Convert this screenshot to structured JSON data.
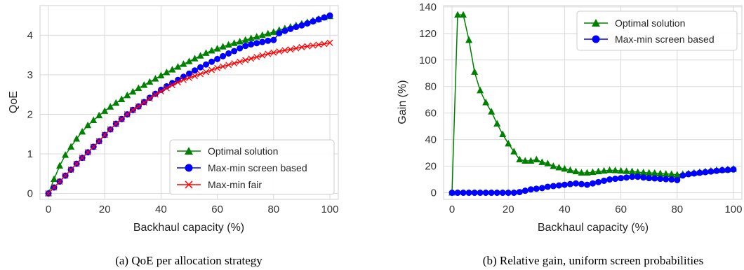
{
  "captions": {
    "a": "(a) QoE per allocation strategy",
    "b": "(b) Relative gain, uniform screen probabilities"
  },
  "chart_data": [
    {
      "type": "line",
      "title": "",
      "xlabel": "Backhaul capacity (%)",
      "ylabel": "QoE",
      "xlim": [
        -3,
        103
      ],
      "ylim": [
        -0.15,
        4.75
      ],
      "xticks": [
        0,
        20,
        40,
        60,
        80,
        100
      ],
      "yticks": [
        0,
        1,
        2,
        3,
        4
      ],
      "grid": true,
      "legend_position": "lower-right",
      "series": [
        {
          "name": "Optimal solution",
          "color": "#008000",
          "marker": "triangle",
          "x": [
            0,
            2,
            4,
            6,
            8,
            10,
            12,
            14,
            16,
            18,
            20,
            22,
            24,
            26,
            28,
            30,
            32,
            34,
            36,
            38,
            40,
            42,
            44,
            46,
            48,
            50,
            52,
            54,
            56,
            58,
            60,
            62,
            64,
            66,
            68,
            70,
            72,
            74,
            76,
            78,
            80,
            82,
            84,
            86,
            88,
            90,
            92,
            94,
            96,
            98,
            100
          ],
          "y": [
            0,
            0.36,
            0.7,
            0.97,
            1.18,
            1.38,
            1.56,
            1.72,
            1.85,
            1.97,
            2.08,
            2.19,
            2.29,
            2.38,
            2.48,
            2.57,
            2.66,
            2.74,
            2.82,
            2.9,
            2.98,
            3.06,
            3.13,
            3.2,
            3.27,
            3.34,
            3.41,
            3.48,
            3.55,
            3.61,
            3.66,
            3.71,
            3.76,
            3.8,
            3.84,
            3.88,
            3.92,
            3.96,
            4.0,
            4.04,
            4.08,
            4.13,
            4.17,
            4.21,
            4.25,
            4.29,
            4.33,
            4.37,
            4.41,
            4.45,
            4.48
          ]
        },
        {
          "name": "Max-min screen based",
          "color": "#0000ff",
          "marker": "circle",
          "x": [
            0,
            2,
            4,
            6,
            8,
            10,
            12,
            14,
            16,
            18,
            20,
            22,
            24,
            26,
            28,
            30,
            32,
            34,
            36,
            38,
            40,
            42,
            44,
            46,
            48,
            50,
            52,
            54,
            56,
            58,
            60,
            62,
            64,
            66,
            68,
            70,
            72,
            74,
            76,
            78,
            80,
            82,
            84,
            86,
            88,
            90,
            92,
            94,
            96,
            98,
            100
          ],
          "y": [
            0,
            0.15,
            0.3,
            0.45,
            0.6,
            0.75,
            0.9,
            1.04,
            1.18,
            1.32,
            1.48,
            1.62,
            1.76,
            1.88,
            2.0,
            2.11,
            2.2,
            2.31,
            2.42,
            2.52,
            2.62,
            2.71,
            2.79,
            2.87,
            2.95,
            3.03,
            3.11,
            3.19,
            3.26,
            3.33,
            3.4,
            3.47,
            3.54,
            3.6,
            3.67,
            3.73,
            3.77,
            3.8,
            3.83,
            3.86,
            3.88,
            4.05,
            4.11,
            4.16,
            4.21,
            4.25,
            4.3,
            4.35,
            4.4,
            4.45,
            4.5
          ]
        },
        {
          "name": "Max-min fair",
          "color": "#ff0000",
          "marker": "x",
          "x": [
            0,
            2,
            4,
            6,
            8,
            10,
            12,
            14,
            16,
            18,
            20,
            22,
            24,
            26,
            28,
            30,
            32,
            34,
            36,
            38,
            40,
            42,
            44,
            46,
            48,
            50,
            52,
            54,
            56,
            58,
            60,
            62,
            64,
            66,
            68,
            70,
            72,
            74,
            76,
            78,
            80,
            82,
            84,
            86,
            88,
            90,
            92,
            94,
            96,
            98,
            100
          ],
          "y": [
            0,
            0.15,
            0.3,
            0.45,
            0.6,
            0.75,
            0.9,
            1.04,
            1.18,
            1.32,
            1.48,
            1.62,
            1.76,
            1.88,
            2.0,
            2.11,
            2.2,
            2.3,
            2.4,
            2.5,
            2.58,
            2.66,
            2.74,
            2.81,
            2.87,
            2.92,
            2.97,
            3.02,
            3.07,
            3.12,
            3.17,
            3.21,
            3.25,
            3.29,
            3.33,
            3.37,
            3.41,
            3.45,
            3.49,
            3.53,
            3.56,
            3.59,
            3.62,
            3.64,
            3.67,
            3.7,
            3.72,
            3.74,
            3.76,
            3.78,
            3.81
          ]
        }
      ]
    },
    {
      "type": "line",
      "title": "",
      "xlabel": "Backhaul capacity (%)",
      "ylabel": "Gain (%)",
      "xlim": [
        -3,
        103
      ],
      "ylim": [
        -5,
        141
      ],
      "xticks": [
        0,
        20,
        40,
        60,
        80,
        100
      ],
      "yticks": [
        0,
        20,
        40,
        60,
        80,
        100,
        120,
        140
      ],
      "grid": true,
      "legend_position": "top-right",
      "series": [
        {
          "name": "Optimal solution",
          "color": "#008000",
          "marker": "triangle",
          "x": [
            0,
            2,
            4,
            6,
            8,
            10,
            12,
            14,
            16,
            18,
            20,
            22,
            24,
            26,
            28,
            30,
            32,
            34,
            36,
            38,
            40,
            42,
            44,
            46,
            48,
            50,
            52,
            54,
            56,
            58,
            60,
            62,
            64,
            66,
            68,
            70,
            72,
            74,
            76,
            78,
            80,
            82,
            84,
            86,
            88,
            90,
            92,
            94,
            96,
            98,
            100
          ],
          "y": [
            0,
            134,
            134,
            115,
            91,
            77,
            68,
            61,
            52,
            44,
            37,
            31,
            25,
            24,
            24,
            25,
            23,
            22,
            20,
            19,
            18,
            17,
            16,
            15,
            15,
            15.5,
            16,
            16.5,
            17,
            16.8,
            16.5,
            16.2,
            16,
            15.5,
            15.2,
            15,
            14.8,
            14.5,
            14.2,
            14,
            13.5,
            14,
            14.5,
            15,
            15.5,
            16,
            16.5,
            17,
            17.2,
            17.5,
            18
          ]
        },
        {
          "name": "Max-min screen based",
          "color": "#0000ff",
          "marker": "circle",
          "x": [
            0,
            2,
            4,
            6,
            8,
            10,
            12,
            14,
            16,
            18,
            20,
            22,
            24,
            26,
            28,
            30,
            32,
            34,
            36,
            38,
            40,
            42,
            44,
            46,
            48,
            50,
            52,
            54,
            56,
            58,
            60,
            62,
            64,
            66,
            68,
            70,
            72,
            74,
            76,
            78,
            80,
            82,
            84,
            86,
            88,
            90,
            92,
            94,
            96,
            98,
            100
          ],
          "y": [
            0,
            0,
            0,
            0,
            0,
            0,
            0,
            0,
            0,
            0,
            0,
            0,
            0.5,
            1.5,
            2.5,
            3,
            3.5,
            4.5,
            5,
            5.5,
            6,
            6.5,
            7,
            6.5,
            6,
            7,
            8,
            9,
            10,
            10.5,
            11,
            11.5,
            12,
            12,
            11.5,
            11,
            10.8,
            10.5,
            10.2,
            10,
            9.5,
            13,
            14,
            14.5,
            15,
            15.5,
            16,
            16.5,
            17,
            17.2,
            17.5
          ]
        }
      ]
    }
  ]
}
